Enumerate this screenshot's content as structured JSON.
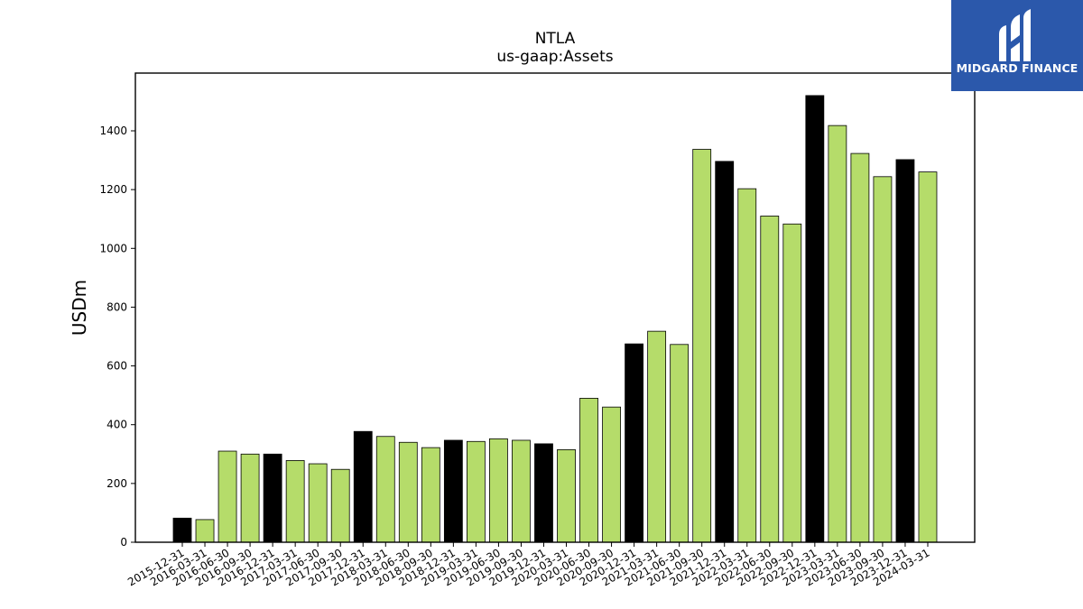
{
  "chart_data": {
    "type": "bar",
    "title": "NTLA",
    "subtitle": "us-gaap:Assets",
    "xlabel": "",
    "ylabel": "USDm",
    "ylim": [
      0,
      1600
    ],
    "yticks": [
      0,
      200,
      400,
      600,
      800,
      1000,
      1200,
      1400
    ],
    "grid": false,
    "categories": [
      "2015-12-31",
      "2016-03-31",
      "2016-06-30",
      "2016-09-30",
      "2016-12-31",
      "2017-03-31",
      "2017-06-30",
      "2017-09-30",
      "2017-12-31",
      "2018-03-31",
      "2018-06-30",
      "2018-09-30",
      "2018-12-31",
      "2019-03-31",
      "2019-06-30",
      "2019-09-30",
      "2019-12-31",
      "2020-03-31",
      "2020-06-30",
      "2020-09-30",
      "2020-12-31",
      "2021-03-31",
      "2021-06-30",
      "2021-09-30",
      "2021-12-31",
      "2022-03-31",
      "2022-06-30",
      "2022-09-30",
      "2022-12-31",
      "2023-03-31",
      "2023-06-30",
      "2023-09-30",
      "2023-12-31",
      "2024-03-31"
    ],
    "values": [
      82,
      77,
      310,
      300,
      300,
      278,
      267,
      248,
      377,
      360,
      340,
      322,
      347,
      343,
      352,
      347,
      335,
      315,
      490,
      460,
      675,
      718,
      673,
      1337,
      1296,
      1203,
      1110,
      1083,
      1520,
      1418,
      1323,
      1244,
      1302,
      1260
    ],
    "colors": {
      "year_end": "#000000",
      "quarter": "#b5dc6a",
      "edge": "#000000"
    }
  },
  "logo": {
    "text": "MIDGARD FINANCE",
    "background": "#2b58ab",
    "foreground": "#ffffff"
  }
}
